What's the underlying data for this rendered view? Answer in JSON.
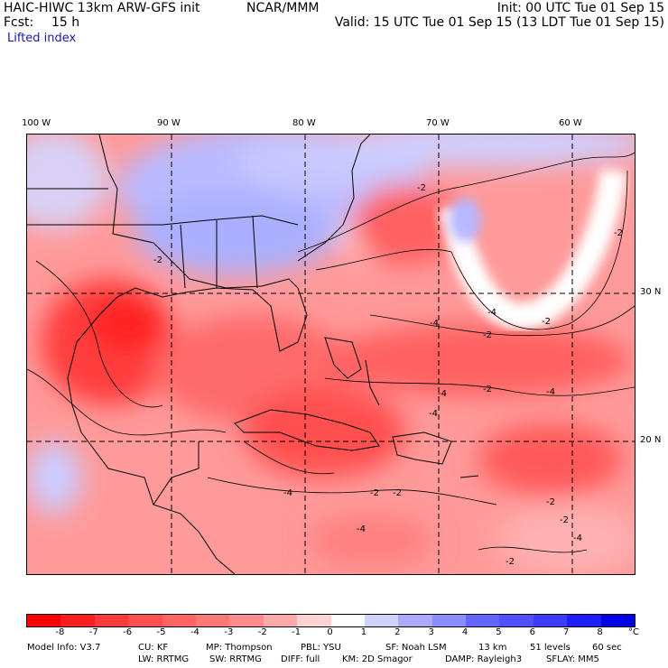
{
  "header": {
    "model": "HAIC-HIWC 13km ARW-GFS init",
    "org": "NCAR/MMM",
    "fcst_label": "Fcst:",
    "fcst_value": "15 h",
    "init": "Init: 00 UTC Tue 01 Sep 15",
    "valid": "Valid: 15 UTC Tue 01 Sep 15 (13 LDT Tue 01 Sep 15)",
    "variable": "Lifted index"
  },
  "map": {
    "lon_labels": [
      "100 W",
      "90 W",
      "80 W",
      "70 W",
      "60 W"
    ],
    "lat_labels": [
      "30 N",
      "20 N"
    ],
    "contour_labels": [
      "-2",
      "-2",
      "-2",
      "-2",
      "-4",
      "-4",
      "-4",
      "-4",
      "-2",
      "-2",
      "-2",
      "-4",
      "-2",
      "-2",
      "-2",
      "-2",
      "-4",
      "-4",
      "-4"
    ]
  },
  "colorbar": {
    "unit": "°C",
    "ticks": [
      "-8",
      "-7",
      "-6",
      "-5",
      "-4",
      "-3",
      "-2",
      "-1",
      "0",
      "1",
      "2",
      "3",
      "4",
      "5",
      "6",
      "7",
      "8"
    ],
    "colors": [
      "#ff0000",
      "#ff1e1e",
      "#ff3c3c",
      "#ff5050",
      "#ff6464",
      "#ff7878",
      "#ff8c8c",
      "#ffaaaa",
      "#ffd2d2",
      "#ffffff",
      "#d2d2ff",
      "#aaaaff",
      "#8c8cff",
      "#6464ff",
      "#5050ff",
      "#3c3cff",
      "#1e1eff",
      "#0000e6"
    ]
  },
  "footer": {
    "line1": [
      "Model Info: V3.7",
      "CU: KF",
      "MP: Thompson",
      "PBL: YSU",
      "SF: Noah LSM",
      "13 km",
      "51 levels",
      "60 sec"
    ],
    "line2": [
      "LW: RRTMG",
      "SW: RRTMG",
      "DIFF: full",
      "KM: 2D Smagor",
      "DAMP: Rayleigh3",
      "SFLAY: MM5"
    ]
  }
}
